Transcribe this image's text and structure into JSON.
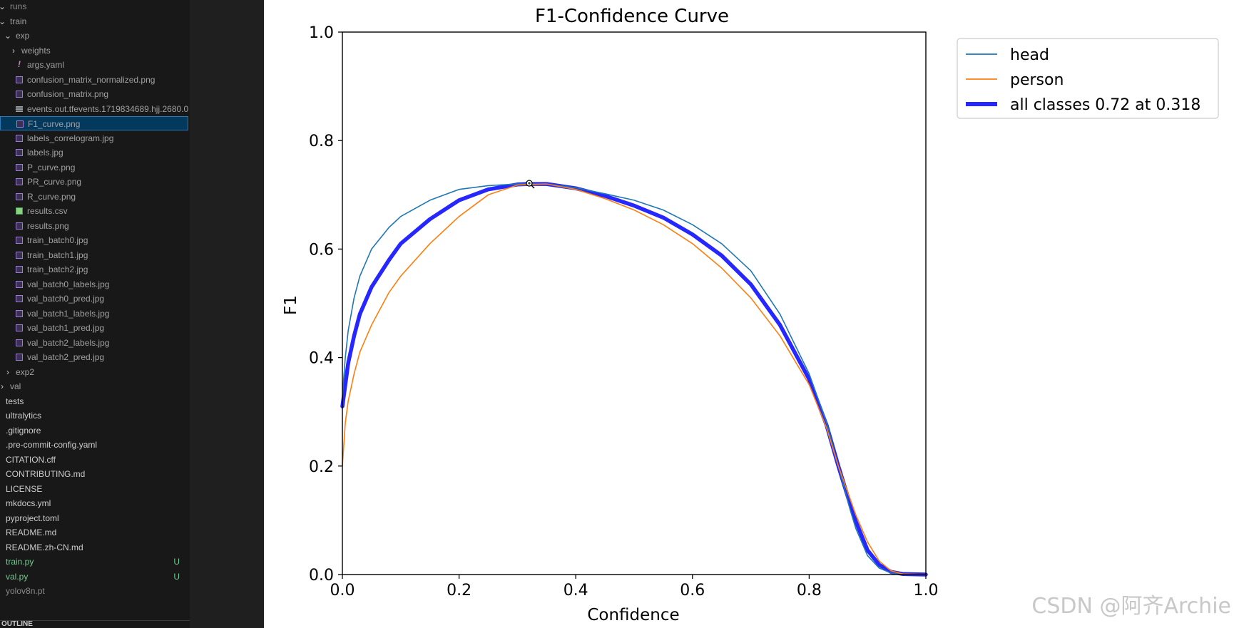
{
  "explorer": {
    "items": [
      {
        "label": "runs",
        "depth": 0,
        "kind": "folder-open",
        "style": "muted"
      },
      {
        "label": "train",
        "depth": 0,
        "kind": "folder-open",
        "style": "dim"
      },
      {
        "label": "exp",
        "depth": 1,
        "kind": "folder-open",
        "style": "dim"
      },
      {
        "label": "weights",
        "depth": 2,
        "kind": "folder",
        "style": "dim"
      },
      {
        "label": "args.yaml",
        "depth": 2,
        "kind": "yaml",
        "style": "dim"
      },
      {
        "label": "confusion_matrix_normalized.png",
        "depth": 2,
        "kind": "image",
        "style": "dim"
      },
      {
        "label": "confusion_matrix.png",
        "depth": 2,
        "kind": "image",
        "style": "dim"
      },
      {
        "label": "events.out.tfevents.1719834689.hjj.2680.0",
        "depth": 2,
        "kind": "text",
        "style": "dim"
      },
      {
        "label": "F1_curve.png",
        "depth": 2,
        "kind": "image",
        "style": "dim",
        "selected": true
      },
      {
        "label": "labels_correlogram.jpg",
        "depth": 2,
        "kind": "image",
        "style": "dim"
      },
      {
        "label": "labels.jpg",
        "depth": 2,
        "kind": "image",
        "style": "dim"
      },
      {
        "label": "P_curve.png",
        "depth": 2,
        "kind": "image",
        "style": "dim"
      },
      {
        "label": "PR_curve.png",
        "depth": 2,
        "kind": "image",
        "style": "dim"
      },
      {
        "label": "R_curve.png",
        "depth": 2,
        "kind": "image",
        "style": "dim"
      },
      {
        "label": "results.csv",
        "depth": 2,
        "kind": "csv",
        "style": "dim"
      },
      {
        "label": "results.png",
        "depth": 2,
        "kind": "image",
        "style": "dim"
      },
      {
        "label": "train_batch0.jpg",
        "depth": 2,
        "kind": "image",
        "style": "dim"
      },
      {
        "label": "train_batch1.jpg",
        "depth": 2,
        "kind": "image",
        "style": "dim"
      },
      {
        "label": "train_batch2.jpg",
        "depth": 2,
        "kind": "image",
        "style": "dim"
      },
      {
        "label": "val_batch0_labels.jpg",
        "depth": 2,
        "kind": "image",
        "style": "dim"
      },
      {
        "label": "val_batch0_pred.jpg",
        "depth": 2,
        "kind": "image",
        "style": "dim"
      },
      {
        "label": "val_batch1_labels.jpg",
        "depth": 2,
        "kind": "image",
        "style": "dim"
      },
      {
        "label": "val_batch1_pred.jpg",
        "depth": 2,
        "kind": "image",
        "style": "dim"
      },
      {
        "label": "val_batch2_labels.jpg",
        "depth": 2,
        "kind": "image",
        "style": "dim"
      },
      {
        "label": "val_batch2_pred.jpg",
        "depth": 2,
        "kind": "image",
        "style": "dim"
      },
      {
        "label": "exp2",
        "depth": 1,
        "kind": "folder",
        "style": "dim"
      },
      {
        "label": "val",
        "depth": 0,
        "kind": "folder",
        "style": "dim"
      },
      {
        "label": "tests",
        "depth": -1,
        "kind": "none",
        "style": "normal"
      },
      {
        "label": "ultralytics",
        "depth": -1,
        "kind": "none",
        "style": "normal"
      },
      {
        "label": ".gitignore",
        "depth": -1,
        "kind": "none",
        "style": "normal"
      },
      {
        "label": ".pre-commit-config.yaml",
        "depth": -1,
        "kind": "none",
        "style": "normal"
      },
      {
        "label": "CITATION.cff",
        "depth": -1,
        "kind": "none",
        "style": "normal"
      },
      {
        "label": "CONTRIBUTING.md",
        "depth": -1,
        "kind": "none",
        "style": "normal"
      },
      {
        "label": "LICENSE",
        "depth": -1,
        "kind": "none",
        "style": "normal"
      },
      {
        "label": "mkdocs.yml",
        "depth": -1,
        "kind": "none",
        "style": "normal"
      },
      {
        "label": "pyproject.toml",
        "depth": -1,
        "kind": "none",
        "style": "normal"
      },
      {
        "label": "README.md",
        "depth": -1,
        "kind": "none",
        "style": "normal"
      },
      {
        "label": "README.zh-CN.md",
        "depth": -1,
        "kind": "none",
        "style": "normal"
      },
      {
        "label": "train.py",
        "depth": -1,
        "kind": "none",
        "style": "green",
        "badge": "U"
      },
      {
        "label": "val.py",
        "depth": -1,
        "kind": "none",
        "style": "green",
        "badge": "U"
      },
      {
        "label": "yolov8n.pt",
        "depth": -1,
        "kind": "none",
        "style": "muted"
      }
    ],
    "outline_label": "OUTLINE"
  },
  "watermark": "CSDN @阿齐Archie",
  "chart_data": {
    "type": "line",
    "title": "F1-Confidence Curve",
    "xlabel": "Confidence",
    "ylabel": "F1",
    "xlim": [
      0.0,
      1.0
    ],
    "ylim": [
      0.0,
      1.0
    ],
    "xticks": [
      "0.0",
      "0.2",
      "0.4",
      "0.6",
      "0.8",
      "1.0"
    ],
    "yticks": [
      "0.0",
      "0.2",
      "0.4",
      "0.6",
      "0.8",
      "1.0"
    ],
    "grid": false,
    "legend_position": "outside-top-right",
    "series": [
      {
        "name": "head",
        "color": "#1f77b4",
        "x": [
          0.0,
          0.005,
          0.01,
          0.02,
          0.03,
          0.05,
          0.08,
          0.1,
          0.15,
          0.2,
          0.25,
          0.3,
          0.35,
          0.4,
          0.45,
          0.5,
          0.55,
          0.6,
          0.65,
          0.7,
          0.75,
          0.8,
          0.83,
          0.85,
          0.87,
          0.88,
          0.9,
          0.92,
          0.94,
          0.96,
          1.0
        ],
        "y": [
          0.33,
          0.4,
          0.45,
          0.51,
          0.55,
          0.6,
          0.64,
          0.66,
          0.69,
          0.71,
          0.717,
          0.72,
          0.72,
          0.713,
          0.702,
          0.69,
          0.672,
          0.645,
          0.61,
          0.56,
          0.48,
          0.37,
          0.28,
          0.2,
          0.12,
          0.085,
          0.035,
          0.012,
          0.003,
          0.0,
          0.0
        ]
      },
      {
        "name": "person",
        "color": "#ff7f0e",
        "x": [
          0.0,
          0.005,
          0.01,
          0.02,
          0.03,
          0.05,
          0.08,
          0.1,
          0.15,
          0.2,
          0.25,
          0.3,
          0.35,
          0.4,
          0.45,
          0.5,
          0.55,
          0.6,
          0.65,
          0.7,
          0.75,
          0.8,
          0.83,
          0.85,
          0.87,
          0.88,
          0.9,
          0.92,
          0.94,
          0.96,
          1.0
        ],
        "y": [
          0.2,
          0.28,
          0.32,
          0.37,
          0.41,
          0.46,
          0.52,
          0.55,
          0.61,
          0.66,
          0.7,
          0.718,
          0.72,
          0.71,
          0.693,
          0.672,
          0.645,
          0.61,
          0.565,
          0.51,
          0.44,
          0.35,
          0.27,
          0.2,
          0.14,
          0.11,
          0.06,
          0.025,
          0.007,
          0.001,
          0.0
        ]
      },
      {
        "name": "all classes 0.72 at 0.318",
        "color": "#0000ff",
        "x": [
          0.0,
          0.005,
          0.01,
          0.02,
          0.03,
          0.05,
          0.08,
          0.1,
          0.15,
          0.2,
          0.25,
          0.3,
          0.318,
          0.35,
          0.4,
          0.45,
          0.5,
          0.55,
          0.6,
          0.65,
          0.7,
          0.75,
          0.8,
          0.83,
          0.85,
          0.87,
          0.88,
          0.9,
          0.92,
          0.94,
          0.96,
          1.0
        ],
        "y": [
          0.31,
          0.35,
          0.39,
          0.44,
          0.48,
          0.53,
          0.58,
          0.61,
          0.655,
          0.69,
          0.71,
          0.719,
          0.72,
          0.72,
          0.712,
          0.698,
          0.68,
          0.658,
          0.627,
          0.588,
          0.535,
          0.46,
          0.36,
          0.275,
          0.2,
          0.13,
          0.098,
          0.045,
          0.018,
          0.005,
          0.001,
          0.0
        ]
      }
    ]
  }
}
